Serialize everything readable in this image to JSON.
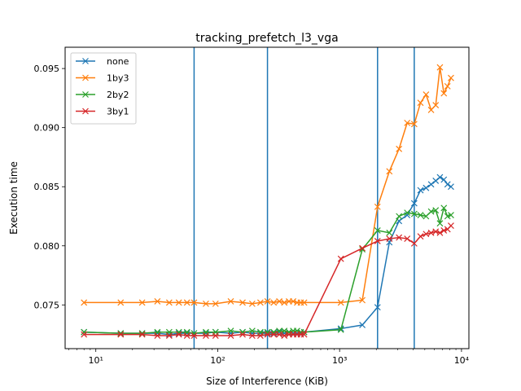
{
  "chart_data": {
    "type": "line",
    "title": "tracking_prefetch_l3_vga",
    "xlabel": "Size of Interference (KiB)",
    "ylabel": "Execution time",
    "xscale": "log",
    "xlim": [
      5.6,
      11500
    ],
    "ylim": [
      0.0713,
      0.0968
    ],
    "x_ticks": [
      10,
      100,
      1000,
      10000
    ],
    "x_tick_labels": [
      "10¹",
      "10²",
      "10³",
      "10⁴"
    ],
    "y_ticks": [
      0.075,
      0.08,
      0.085,
      0.09,
      0.095
    ],
    "y_tick_labels": [
      "0.075",
      "0.080",
      "0.085",
      "0.090",
      "0.095"
    ],
    "vlines": [
      64,
      256,
      2048,
      4096
    ],
    "vline_color": "#1f77b4",
    "legend_position": "upper-left",
    "grid": false,
    "x": [
      8,
      16,
      24,
      32,
      40,
      48,
      56,
      64,
      80,
      96,
      128,
      160,
      192,
      224,
      256,
      288,
      320,
      352,
      384,
      416,
      448,
      480,
      512,
      1024,
      1536,
      2048,
      2560,
      3072,
      3584,
      4096,
      4608,
      5120,
      5632,
      6144,
      6656,
      7168,
      7680,
      8192
    ],
    "series": [
      {
        "name": "none",
        "color": "#1f77b4",
        "values": [
          0.0727,
          0.0726,
          0.0726,
          0.0726,
          0.0725,
          0.0726,
          0.0726,
          0.0726,
          0.0726,
          0.0727,
          0.0726,
          0.0727,
          0.0726,
          0.0726,
          0.0726,
          0.0726,
          0.0727,
          0.0726,
          0.0727,
          0.0726,
          0.0726,
          0.0726,
          0.0727,
          0.073,
          0.0733,
          0.0748,
          0.0803,
          0.0821,
          0.0826,
          0.0836,
          0.0847,
          0.0849,
          0.0852,
          0.0855,
          0.0858,
          0.0856,
          0.0852,
          0.085
        ]
      },
      {
        "name": "1by3",
        "color": "#ff7f0e",
        "values": [
          0.0752,
          0.0752,
          0.0752,
          0.0753,
          0.0752,
          0.0752,
          0.0752,
          0.0752,
          0.0751,
          0.0751,
          0.0753,
          0.0752,
          0.0751,
          0.0752,
          0.0753,
          0.0752,
          0.0753,
          0.0752,
          0.0753,
          0.0753,
          0.0752,
          0.0752,
          0.0752,
          0.0752,
          0.0754,
          0.0833,
          0.0863,
          0.0882,
          0.0904,
          0.0903,
          0.0921,
          0.0928,
          0.0915,
          0.0919,
          0.0951,
          0.0929,
          0.0935,
          0.0942
        ]
      },
      {
        "name": "2by2",
        "color": "#2ca02c",
        "values": [
          0.0727,
          0.0726,
          0.0726,
          0.0727,
          0.0727,
          0.0727,
          0.0727,
          0.0726,
          0.0727,
          0.0727,
          0.0728,
          0.0727,
          0.0728,
          0.0727,
          0.0727,
          0.0727,
          0.0728,
          0.0728,
          0.0727,
          0.0728,
          0.0728,
          0.0727,
          0.0727,
          0.0729,
          0.0797,
          0.0813,
          0.0811,
          0.0825,
          0.0828,
          0.0827,
          0.0826,
          0.0825,
          0.0829,
          0.083,
          0.0819,
          0.0832,
          0.0825,
          0.0826
        ]
      },
      {
        "name": "3by1",
        "color": "#d62728",
        "values": [
          0.0725,
          0.0725,
          0.0725,
          0.0724,
          0.0724,
          0.0725,
          0.0724,
          0.0724,
          0.0724,
          0.0724,
          0.0724,
          0.0725,
          0.0724,
          0.0724,
          0.0725,
          0.0725,
          0.0725,
          0.0724,
          0.0725,
          0.0725,
          0.0725,
          0.0725,
          0.0725,
          0.0789,
          0.0798,
          0.0804,
          0.0806,
          0.0807,
          0.0806,
          0.0802,
          0.0808,
          0.081,
          0.0811,
          0.0812,
          0.0811,
          0.0813,
          0.0814,
          0.0817
        ]
      }
    ]
  }
}
